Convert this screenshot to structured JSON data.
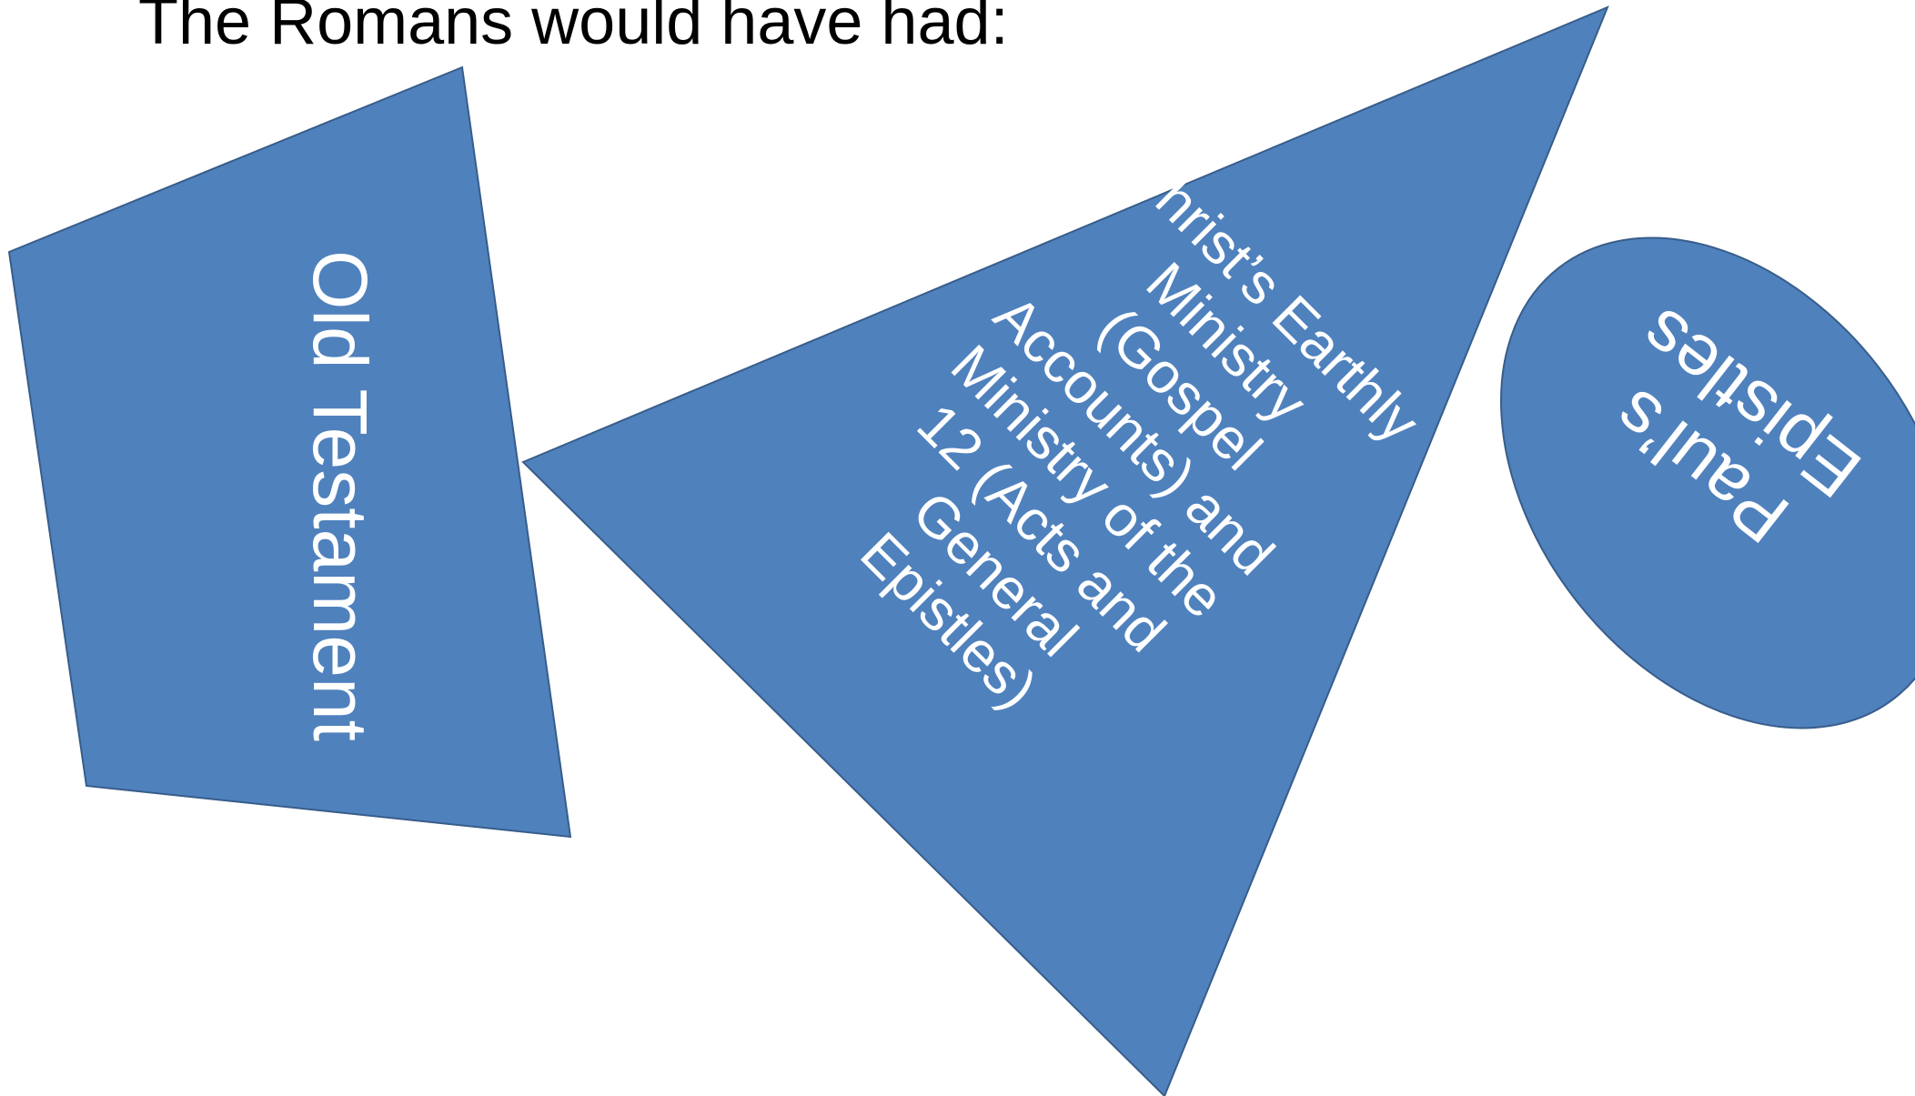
{
  "slide": {
    "title": "The Romans would have had:"
  },
  "shapes": {
    "old_testament": {
      "label": "Old Testament"
    },
    "christ_ministry": {
      "lines": [
        "Christ’s Earthly",
        "Ministry",
        "(Gospel",
        "Accounts) and",
        "Ministry of the",
        "12 (Acts and",
        "General",
        "Epistles)"
      ]
    },
    "pauls_epistles": {
      "lines": [
        "Paul’s",
        "Epistles"
      ]
    }
  },
  "colors": {
    "shape_fill": "#4f81bd",
    "shape_stroke": "#385d8a",
    "shape_text": "#ffffff",
    "title_text": "#000000"
  }
}
